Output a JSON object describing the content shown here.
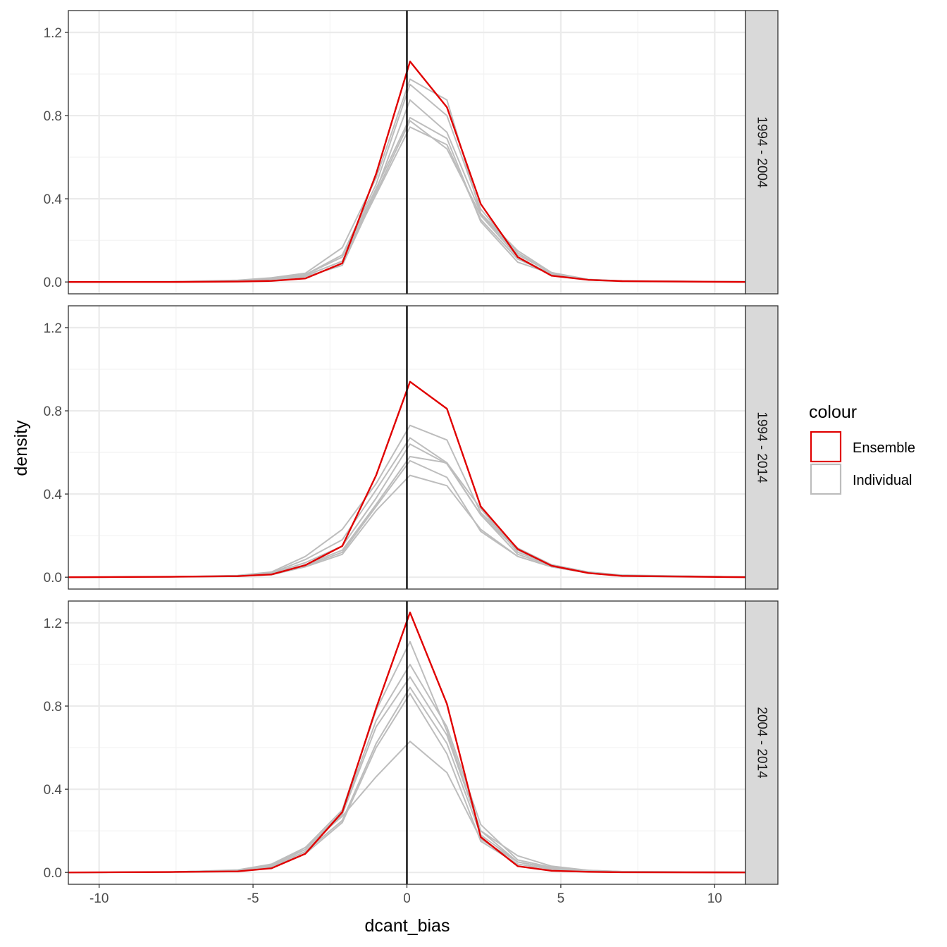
{
  "chart_data": {
    "type": "line",
    "xlabel": "dcant_bias",
    "ylabel": "density",
    "xlim": [
      -11,
      11
    ],
    "ylim": [
      -0.057,
      1.305
    ],
    "x_ticks": [
      -10,
      -5,
      0,
      5,
      10
    ],
    "x_tick_labels": [
      "-10",
      "-5",
      "0",
      "5",
      "10"
    ],
    "y_ticks": [
      0.0,
      0.4,
      0.8,
      1.2
    ],
    "y_tick_labels": [
      "0.0",
      "0.4",
      "0.8",
      "1.2"
    ],
    "vline_x": 0,
    "grid": true,
    "legend": {
      "title": "colour",
      "position": "right",
      "entries": [
        {
          "label": "Ensemble",
          "color": "#e00000"
        },
        {
          "label": "Individual",
          "color": "#bdbdbd"
        }
      ]
    },
    "panels": [
      {
        "facet": "1994 - 2004",
        "series": [
          {
            "group": "Individual",
            "color": "#bdbdbd",
            "x": [
              -11,
              -7.7,
              -5.5,
              -4.4,
              -3.3,
              -2.1,
              -1.0,
              0.1,
              1.3,
              2.4,
              3.6,
              4.7,
              5.9,
              7.0,
              11
            ],
            "y": [
              0,
              0.001,
              0.008,
              0.02,
              0.042,
              0.165,
              0.5,
              0.975,
              0.875,
              0.33,
              0.13,
              0.045,
              0.012,
              0.005,
              0.001
            ]
          },
          {
            "group": "Individual",
            "color": "#bdbdbd",
            "x": [
              -11,
              -7.7,
              -5.5,
              -4.4,
              -3.3,
              -2.1,
              -1.0,
              0.1,
              1.3,
              2.4,
              3.6,
              4.7,
              5.9,
              7.0,
              11
            ],
            "y": [
              0,
              0.001,
              0.006,
              0.015,
              0.035,
              0.13,
              0.47,
              0.95,
              0.8,
              0.35,
              0.14,
              0.04,
              0.012,
              0.005,
              0.001
            ]
          },
          {
            "group": "Individual",
            "color": "#bdbdbd",
            "x": [
              -11,
              -7.7,
              -5.5,
              -4.4,
              -3.3,
              -2.1,
              -1.0,
              0.1,
              1.3,
              2.4,
              3.6,
              4.7,
              5.9,
              7.0,
              11
            ],
            "y": [
              0,
              0.001,
              0.005,
              0.012,
              0.03,
              0.1,
              0.44,
              0.875,
              0.72,
              0.33,
              0.15,
              0.045,
              0.01,
              0.004,
              0.001
            ]
          },
          {
            "group": "Individual",
            "color": "#bdbdbd",
            "x": [
              -11,
              -7.7,
              -5.5,
              -4.4,
              -3.3,
              -2.1,
              -1.0,
              0.1,
              1.3,
              2.4,
              3.6,
              4.7,
              5.9,
              7.0,
              11
            ],
            "y": [
              0,
              0.001,
              0.005,
              0.015,
              0.035,
              0.12,
              0.45,
              0.79,
              0.69,
              0.29,
              0.095,
              0.04,
              0.01,
              0.004,
              0.001
            ]
          },
          {
            "group": "Individual",
            "color": "#bdbdbd",
            "x": [
              -11,
              -7.7,
              -5.5,
              -4.4,
              -3.3,
              -2.1,
              -1.0,
              0.1,
              1.3,
              2.4,
              3.6,
              4.7,
              5.9,
              7.0,
              11
            ],
            "y": [
              0,
              0.001,
              0.004,
              0.01,
              0.025,
              0.08,
              0.43,
              0.775,
              0.64,
              0.32,
              0.12,
              0.035,
              0.012,
              0.004,
              0.001
            ]
          },
          {
            "group": "Individual",
            "color": "#bdbdbd",
            "x": [
              -11,
              -7.7,
              -5.5,
              -4.4,
              -3.3,
              -2.1,
              -1.0,
              0.1,
              1.3,
              2.4,
              3.6,
              4.7,
              5.9,
              7.0,
              11
            ],
            "y": [
              0,
              0.001,
              0.004,
              0.012,
              0.03,
              0.1,
              0.42,
              0.745,
              0.66,
              0.3,
              0.11,
              0.04,
              0.01,
              0.004,
              0.001
            ]
          },
          {
            "group": "Ensemble",
            "color": "#e00000",
            "x": [
              -11,
              -7.7,
              -5.5,
              -4.4,
              -3.3,
              -2.1,
              -1.0,
              0.1,
              1.3,
              2.4,
              3.6,
              4.7,
              5.9,
              7.0,
              11
            ],
            "y": [
              0,
              0,
              0.002,
              0.005,
              0.017,
              0.09,
              0.52,
              1.06,
              0.84,
              0.375,
              0.12,
              0.03,
              0.01,
              0.004,
              0
            ]
          }
        ]
      },
      {
        "facet": "1994 - 2014",
        "series": [
          {
            "group": "Individual",
            "color": "#bdbdbd",
            "x": [
              -11,
              -7.7,
              -5.5,
              -4.4,
              -3.3,
              -2.1,
              -1.0,
              0.1,
              1.3,
              2.4,
              3.6,
              4.7,
              5.9,
              7.0,
              11
            ],
            "y": [
              0,
              0.002,
              0.008,
              0.025,
              0.1,
              0.23,
              0.45,
              0.73,
              0.66,
              0.31,
              0.14,
              0.06,
              0.02,
              0.008,
              0.001
            ]
          },
          {
            "group": "Individual",
            "color": "#bdbdbd",
            "x": [
              -11,
              -7.7,
              -5.5,
              -4.4,
              -3.3,
              -2.1,
              -1.0,
              0.1,
              1.3,
              2.4,
              3.6,
              4.7,
              5.9,
              7.0,
              11
            ],
            "y": [
              0,
              0.002,
              0.007,
              0.02,
              0.085,
              0.18,
              0.42,
              0.67,
              0.55,
              0.33,
              0.12,
              0.06,
              0.025,
              0.01,
              0.001
            ]
          },
          {
            "group": "Individual",
            "color": "#bdbdbd",
            "x": [
              -11,
              -7.7,
              -5.5,
              -4.4,
              -3.3,
              -2.1,
              -1.0,
              0.1,
              1.3,
              2.4,
              3.6,
              4.7,
              5.9,
              7.0,
              11
            ],
            "y": [
              0,
              0.002,
              0.006,
              0.018,
              0.07,
              0.15,
              0.38,
              0.64,
              0.545,
              0.3,
              0.13,
              0.055,
              0.02,
              0.008,
              0.001
            ]
          },
          {
            "group": "Individual",
            "color": "#bdbdbd",
            "x": [
              -11,
              -7.7,
              -5.5,
              -4.4,
              -3.3,
              -2.1,
              -1.0,
              0.1,
              1.3,
              2.4,
              3.6,
              4.7,
              5.9,
              7.0,
              11
            ],
            "y": [
              0,
              0.002,
              0.006,
              0.015,
              0.06,
              0.13,
              0.35,
              0.58,
              0.55,
              0.3,
              0.11,
              0.055,
              0.02,
              0.008,
              0.001
            ]
          },
          {
            "group": "Individual",
            "color": "#bdbdbd",
            "x": [
              -11,
              -7.7,
              -5.5,
              -4.4,
              -3.3,
              -2.1,
              -1.0,
              0.1,
              1.3,
              2.4,
              3.6,
              4.7,
              5.9,
              7.0,
              11
            ],
            "y": [
              0,
              0.002,
              0.005,
              0.015,
              0.055,
              0.12,
              0.34,
              0.56,
              0.48,
              0.22,
              0.1,
              0.05,
              0.02,
              0.008,
              0.001
            ]
          },
          {
            "group": "Individual",
            "color": "#bdbdbd",
            "x": [
              -11,
              -7.7,
              -5.5,
              -4.4,
              -3.3,
              -2.1,
              -1.0,
              0.1,
              1.3,
              2.4,
              3.6,
              4.7,
              5.9,
              7.0,
              11
            ],
            "y": [
              0,
              0.002,
              0.005,
              0.012,
              0.05,
              0.11,
              0.32,
              0.49,
              0.44,
              0.23,
              0.1,
              0.05,
              0.02,
              0.008,
              0.001
            ]
          },
          {
            "group": "Ensemble",
            "color": "#e00000",
            "x": [
              -11,
              -7.7,
              -5.5,
              -4.4,
              -3.3,
              -2.1,
              -1.0,
              0.1,
              1.3,
              2.4,
              3.6,
              4.7,
              5.9,
              7.0,
              11
            ],
            "y": [
              0,
              0.002,
              0.005,
              0.013,
              0.058,
              0.15,
              0.49,
              0.94,
              0.81,
              0.34,
              0.135,
              0.055,
              0.02,
              0.006,
              0
            ]
          }
        ]
      },
      {
        "facet": "2004 - 2014",
        "series": [
          {
            "group": "Individual",
            "color": "#bdbdbd",
            "x": [
              -11,
              -7.7,
              -5.5,
              -4.4,
              -3.3,
              -2.1,
              -1.0,
              0.1,
              1.3,
              2.4,
              3.6,
              4.7,
              5.9,
              7.0,
              11
            ],
            "y": [
              0,
              0.002,
              0.012,
              0.04,
              0.12,
              0.3,
              0.78,
              1.11,
              0.68,
              0.2,
              0.08,
              0.03,
              0.01,
              0.004,
              0.001
            ]
          },
          {
            "group": "Individual",
            "color": "#bdbdbd",
            "x": [
              -11,
              -7.7,
              -5.5,
              -4.4,
              -3.3,
              -2.1,
              -1.0,
              0.1,
              1.3,
              2.4,
              3.6,
              4.7,
              5.9,
              7.0,
              11
            ],
            "y": [
              0,
              0.002,
              0.01,
              0.035,
              0.11,
              0.29,
              0.73,
              1.0,
              0.7,
              0.23,
              0.06,
              0.025,
              0.01,
              0.004,
              0.001
            ]
          },
          {
            "group": "Individual",
            "color": "#bdbdbd",
            "x": [
              -11,
              -7.7,
              -5.5,
              -4.4,
              -3.3,
              -2.1,
              -1.0,
              0.1,
              1.3,
              2.4,
              3.6,
              4.7,
              5.9,
              7.0,
              11
            ],
            "y": [
              0,
              0.002,
              0.01,
              0.03,
              0.1,
              0.28,
              0.7,
              0.94,
              0.66,
              0.2,
              0.05,
              0.02,
              0.008,
              0.003,
              0.001
            ]
          },
          {
            "group": "Individual",
            "color": "#bdbdbd",
            "x": [
              -11,
              -7.7,
              -5.5,
              -4.4,
              -3.3,
              -2.1,
              -1.0,
              0.1,
              1.3,
              2.4,
              3.6,
              4.7,
              5.9,
              7.0,
              11
            ],
            "y": [
              0,
              0.002,
              0.008,
              0.03,
              0.1,
              0.25,
              0.62,
              0.89,
              0.62,
              0.18,
              0.05,
              0.02,
              0.008,
              0.003,
              0.001
            ]
          },
          {
            "group": "Individual",
            "color": "#bdbdbd",
            "x": [
              -11,
              -7.7,
              -5.5,
              -4.4,
              -3.3,
              -2.1,
              -1.0,
              0.1,
              1.3,
              2.4,
              3.6,
              4.7,
              5.9,
              7.0,
              11
            ],
            "y": [
              0,
              0.002,
              0.008,
              0.025,
              0.09,
              0.24,
              0.6,
              0.86,
              0.57,
              0.15,
              0.04,
              0.015,
              0.005,
              0.002,
              0.001
            ]
          },
          {
            "group": "Individual",
            "color": "#bdbdbd",
            "x": [
              -11,
              -7.7,
              -5.5,
              -4.4,
              -3.3,
              -2.1,
              -1.0,
              0.1,
              1.3,
              2.4,
              3.6,
              4.7,
              5.9,
              7.0,
              11
            ],
            "y": [
              0,
              0.002,
              0.01,
              0.03,
              0.12,
              0.27,
              0.46,
              0.63,
              0.48,
              0.16,
              0.05,
              0.02,
              0.008,
              0.003,
              0.001
            ]
          },
          {
            "group": "Ensemble",
            "color": "#e00000",
            "x": [
              -11,
              -7.7,
              -5.5,
              -4.4,
              -3.3,
              -2.1,
              -1.0,
              0.1,
              1.3,
              2.4,
              3.6,
              4.7,
              5.9,
              7.0,
              11
            ],
            "y": [
              0,
              0.002,
              0.005,
              0.02,
              0.09,
              0.29,
              0.79,
              1.25,
              0.81,
              0.17,
              0.03,
              0.008,
              0.003,
              0.001,
              0
            ]
          }
        ]
      }
    ]
  }
}
